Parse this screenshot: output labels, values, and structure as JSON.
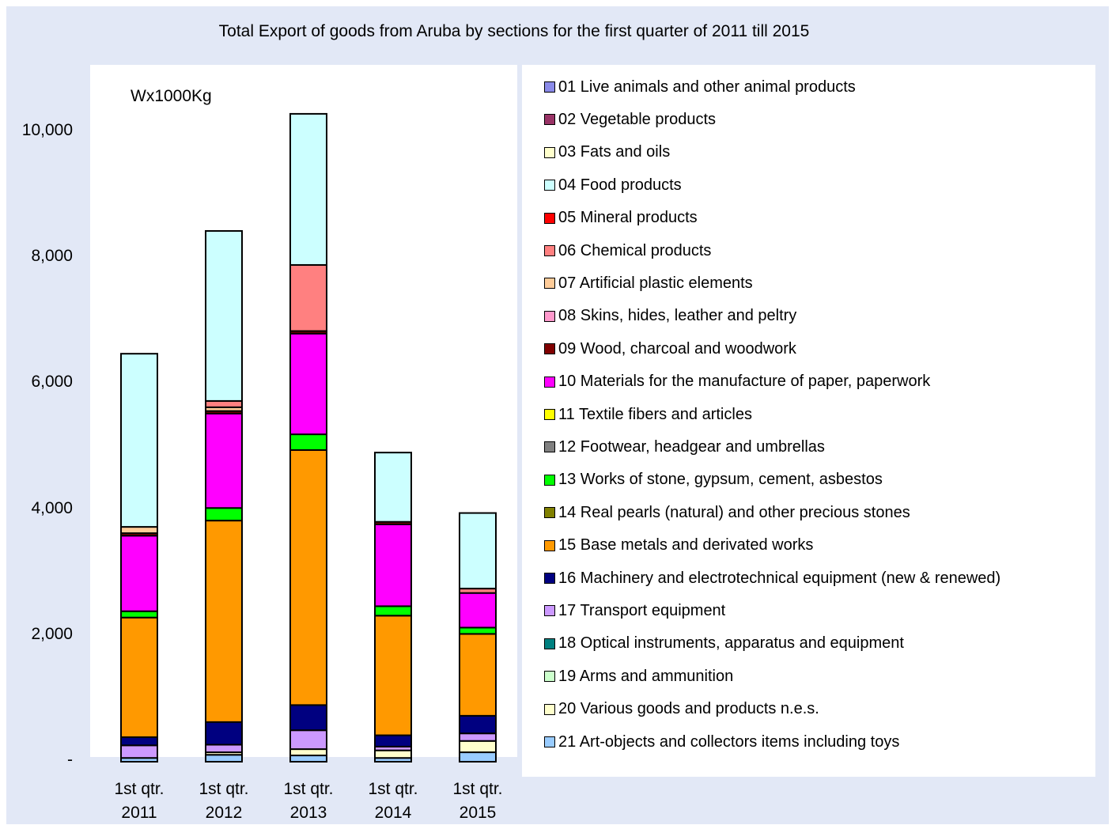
{
  "chart_data": {
    "type": "bar",
    "stacked": true,
    "title": "Total Export of goods from Aruba by sections for the first quarter of 2011 till 2015",
    "unit_label": "Wx1000Kg",
    "categories": [
      "1st qtr. 2011",
      "1st qtr. 2012",
      "1st qtr. 2013",
      "1st qtr. 2014",
      "1st qtr. 2015"
    ],
    "category_lines": [
      [
        "1st qtr.",
        "2011"
      ],
      [
        "1st qtr.",
        "2012"
      ],
      [
        "1st qtr.",
        "2013"
      ],
      [
        "1st qtr.",
        "2014"
      ],
      [
        "1st qtr.",
        "2015"
      ]
    ],
    "ylim": [
      0,
      11000
    ],
    "yticks": [
      0,
      2000,
      4000,
      6000,
      8000,
      10000
    ],
    "ytick_labels": [
      "-",
      "2,000",
      "4,000",
      "6,000",
      "8,000",
      "10,000"
    ],
    "legend_position": "right",
    "series": [
      {
        "name": "01 Live animals and other animal products",
        "color": "#8a8ae8",
        "values": [
          0,
          0,
          0,
          0,
          0
        ]
      },
      {
        "name": "02 Vegetable products",
        "color": "#993366",
        "values": [
          0,
          0,
          0,
          0,
          0
        ]
      },
      {
        "name": "03 Fats and oils",
        "color": "#ffffcc",
        "values": [
          0,
          0,
          0,
          0,
          0
        ]
      },
      {
        "name": "04 Food products",
        "color": "#ccffff",
        "values": [
          2750,
          2700,
          2400,
          1100,
          1200
        ]
      },
      {
        "name": "05 Mineral products",
        "color": "#ff0000",
        "values": [
          0,
          0,
          0,
          0,
          0
        ]
      },
      {
        "name": "06 Chemical products",
        "color": "#ff8080",
        "values": [
          0,
          100,
          1050,
          0,
          70
        ]
      },
      {
        "name": "07 Artificial plastic elements",
        "color": "#ffcc99",
        "values": [
          100,
          60,
          0,
          0,
          0
        ]
      },
      {
        "name": "08 Skins, hides, leather and peltry",
        "color": "#ff99cc",
        "values": [
          0,
          0,
          0,
          0,
          0
        ]
      },
      {
        "name": "09 Wood, charcoal and woodwork",
        "color": "#800000",
        "values": [
          40,
          40,
          40,
          40,
          0
        ]
      },
      {
        "name": "10 Materials for the manufacture of paper, paperwork",
        "color": "#ff00ff",
        "values": [
          1200,
          1500,
          1600,
          1300,
          550
        ]
      },
      {
        "name": "11 Textile fibers and articles",
        "color": "#ffff00",
        "values": [
          0,
          0,
          0,
          0,
          0
        ]
      },
      {
        "name": "12 Footwear, headgear and umbrellas",
        "color": "#808080",
        "values": [
          0,
          0,
          0,
          0,
          0
        ]
      },
      {
        "name": "13 Works of stone, gypsum, cement, asbestos",
        "color": "#00ff00",
        "values": [
          100,
          200,
          250,
          150,
          100
        ]
      },
      {
        "name": "14 Real pearls (natural) and other precious stones",
        "color": "#808000",
        "values": [
          0,
          0,
          0,
          0,
          0
        ]
      },
      {
        "name": "15 Base metals and derivated works",
        "color": "#ff9900",
        "values": [
          1900,
          3200,
          4050,
          1900,
          1300
        ]
      },
      {
        "name": "16 Machinery and electrotechnical equipment (new & renewed)",
        "color": "#000080",
        "values": [
          130,
          360,
          400,
          180,
          280
        ]
      },
      {
        "name": "17 Transport equipment",
        "color": "#cc99ff",
        "values": [
          200,
          120,
          300,
          60,
          120
        ]
      },
      {
        "name": "18 Optical instruments, apparatus and equipment",
        "color": "#008080",
        "values": [
          0,
          0,
          0,
          0,
          0
        ]
      },
      {
        "name": "19 Arms and ammunition",
        "color": "#ccffcc",
        "values": [
          0,
          0,
          0,
          0,
          0
        ]
      },
      {
        "name": "20 Various goods and products n.e.s.",
        "color": "#ffffcc",
        "values": [
          0,
          40,
          100,
          120,
          180
        ]
      },
      {
        "name": "21 Art-objects and collectors items including toys",
        "color": "#99ccff",
        "values": [
          60,
          110,
          100,
          60,
          150
        ]
      }
    ]
  }
}
